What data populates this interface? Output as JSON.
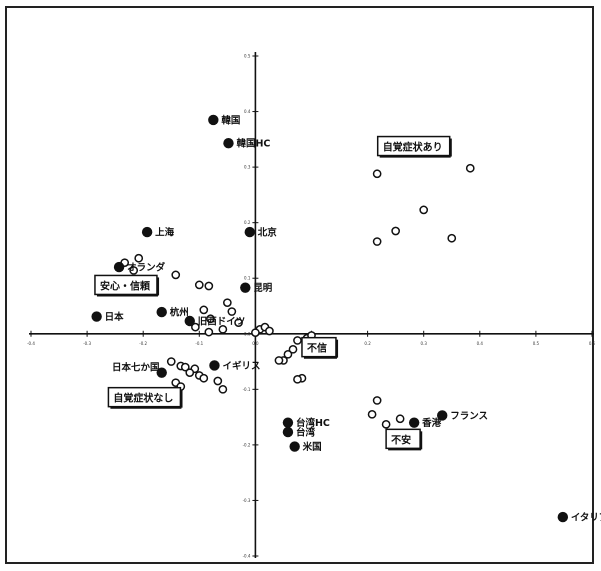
{
  "chart_data": {
    "type": "scatter",
    "title": "",
    "xlabel": "",
    "ylabel": "",
    "xlim": [
      -0.4,
      0.6
    ],
    "ylim": [
      -0.4,
      0.5
    ],
    "grid": false,
    "x_ticks": [
      "-0.4",
      "-0.3",
      "-0.2",
      "-0.1",
      "0.0",
      "0.1",
      "0.2",
      "0.3",
      "0.4",
      "0.5",
      "0.6"
    ],
    "y_ticks": [
      "0.5",
      "0.4",
      "0.3",
      "0.2",
      "0.1",
      "0.0",
      "-0.1",
      "-0.2",
      "-0.3",
      "-0.4"
    ],
    "colors": {
      "filled": "#111111",
      "open_stroke": "#111111",
      "axis": "#111111",
      "border": "#222222"
    },
    "series": [
      {
        "marker": "filled",
        "points": [
          {
            "label": "韓国",
            "x": -0.075,
            "y": 0.385
          },
          {
            "label": "韓国HC",
            "x": -0.048,
            "y": 0.343
          },
          {
            "label": "上海",
            "x": -0.193,
            "y": 0.183
          },
          {
            "label": "北京",
            "x": -0.01,
            "y": 0.183
          },
          {
            "label": "オランダ",
            "x": -0.243,
            "y": 0.12
          },
          {
            "label": "昆明",
            "x": -0.018,
            "y": 0.083
          },
          {
            "label": "日本",
            "x": -0.283,
            "y": 0.031
          },
          {
            "label": "杭州",
            "x": -0.167,
            "y": 0.039
          },
          {
            "label": "旧西ドイツ",
            "x": -0.117,
            "y": 0.023
          },
          {
            "label": "日本七か国",
            "x": -0.167,
            "y": -0.07
          },
          {
            "label": "イギリス",
            "x": -0.073,
            "y": -0.057
          },
          {
            "label": "台湾HC",
            "x": 0.058,
            "y": -0.16
          },
          {
            "label": "台湾",
            "x": 0.058,
            "y": -0.177
          },
          {
            "label": "米国",
            "x": 0.07,
            "y": -0.203
          },
          {
            "label": "フランス",
            "x": 0.333,
            "y": -0.147
          },
          {
            "label": "香港",
            "x": 0.283,
            "y": -0.16
          },
          {
            "label": "イタリア",
            "x": 0.548,
            "y": -0.33
          }
        ]
      },
      {
        "marker": "open",
        "points": [
          {
            "x": 0.217,
            "y": 0.288
          },
          {
            "x": 0.383,
            "y": 0.298
          },
          {
            "x": 0.3,
            "y": 0.223
          },
          {
            "x": 0.25,
            "y": 0.185
          },
          {
            "x": 0.217,
            "y": 0.166
          },
          {
            "x": 0.35,
            "y": 0.172
          },
          {
            "x": -0.233,
            "y": 0.128
          },
          {
            "x": -0.208,
            "y": 0.136
          },
          {
            "x": -0.217,
            "y": 0.114
          },
          {
            "x": -0.142,
            "y": 0.106
          },
          {
            "x": -0.1,
            "y": 0.088
          },
          {
            "x": -0.083,
            "y": 0.086
          },
          {
            "x": -0.05,
            "y": 0.056
          },
          {
            "x": -0.092,
            "y": 0.043
          },
          {
            "x": -0.042,
            "y": 0.04
          },
          {
            "x": -0.08,
            "y": 0.027
          },
          {
            "x": -0.03,
            "y": 0.02
          },
          {
            "x": -0.107,
            "y": 0.012
          },
          {
            "x": -0.058,
            "y": 0.008
          },
          {
            "x": -0.083,
            "y": 0.003
          },
          {
            "x": 0.008,
            "y": 0.008
          },
          {
            "x": 0.017,
            "y": 0.012
          },
          {
            "x": 0.025,
            "y": 0.005
          },
          {
            "x": 0.0,
            "y": 0.002
          },
          {
            "x": 0.075,
            "y": -0.012
          },
          {
            "x": 0.092,
            "y": -0.008
          },
          {
            "x": 0.1,
            "y": -0.003
          },
          {
            "x": 0.067,
            "y": -0.028
          },
          {
            "x": 0.058,
            "y": -0.037
          },
          {
            "x": 0.05,
            "y": -0.048
          },
          {
            "x": 0.042,
            "y": -0.048
          },
          {
            "x": -0.15,
            "y": -0.05
          },
          {
            "x": -0.133,
            "y": -0.058
          },
          {
            "x": -0.125,
            "y": -0.06
          },
          {
            "x": -0.108,
            "y": -0.063
          },
          {
            "x": -0.117,
            "y": -0.07
          },
          {
            "x": -0.1,
            "y": -0.075
          },
          {
            "x": -0.092,
            "y": -0.08
          },
          {
            "x": -0.067,
            "y": -0.085
          },
          {
            "x": -0.142,
            "y": -0.088
          },
          {
            "x": -0.133,
            "y": -0.095
          },
          {
            "x": -0.058,
            "y": -0.1
          },
          {
            "x": 0.083,
            "y": -0.08
          },
          {
            "x": 0.075,
            "y": -0.082
          },
          {
            "x": 0.217,
            "y": -0.12
          },
          {
            "x": 0.208,
            "y": -0.145
          },
          {
            "x": 0.233,
            "y": -0.163
          },
          {
            "x": 0.258,
            "y": -0.153
          }
        ]
      }
    ],
    "annotations": [
      {
        "text": "自覚症状あり",
        "x": 0.218,
        "y": 0.337
      },
      {
        "text": "安心・信頼",
        "x": -0.286,
        "y": 0.087
      },
      {
        "text": "不信",
        "x": 0.083,
        "y": -0.025
      },
      {
        "text": "自覚症状なし",
        "x": -0.262,
        "y": -0.115
      },
      {
        "text": "不安",
        "x": 0.233,
        "y": -0.19
      }
    ]
  }
}
